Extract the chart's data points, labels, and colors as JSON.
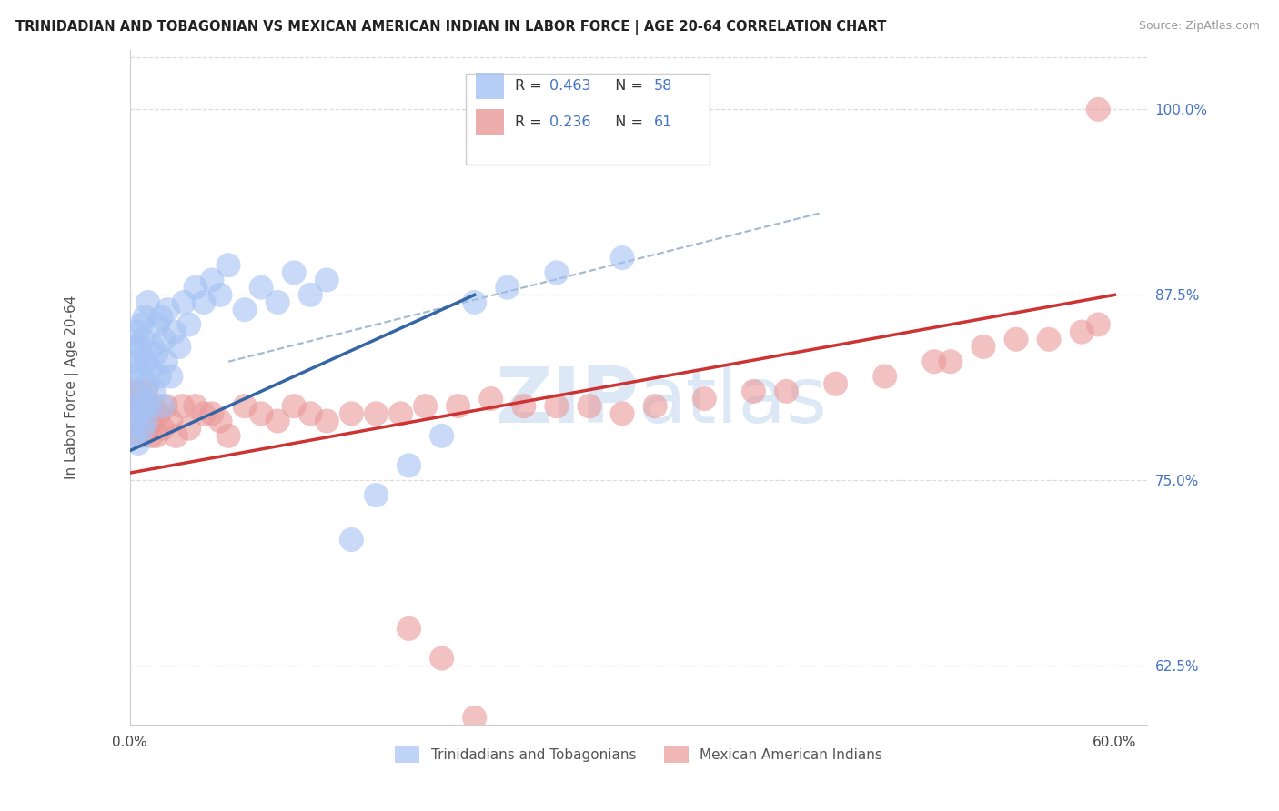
{
  "title": "TRINIDADIAN AND TOBAGONIAN VS MEXICAN AMERICAN INDIAN IN LABOR FORCE | AGE 20-64 CORRELATION CHART",
  "source": "Source: ZipAtlas.com",
  "ylabel": "In Labor Force | Age 20-64",
  "xlim": [
    0.0,
    0.62
  ],
  "ylim": [
    0.585,
    1.04
  ],
  "yticks_right": [
    0.625,
    0.75,
    0.875,
    1.0
  ],
  "yticklabels_right": [
    "62.5%",
    "75.0%",
    "87.5%",
    "100.0%"
  ],
  "R_blue": 0.463,
  "N_blue": 58,
  "R_pink": 0.236,
  "N_pink": 61,
  "blue_color": "#a4c2f4",
  "pink_color": "#ea9999",
  "blue_line_color": "#3465a4",
  "pink_line_color": "#cc3333",
  "dashed_color": "#a0b8d0",
  "legend_labels": [
    "Trinidadians and Tobagonians",
    "Mexican American Indians"
  ],
  "background_color": "#ffffff",
  "grid_color": "#dddddd",
  "right_tick_color": "#4472c4",
  "watermark_color": "#dce8f5",
  "blue_x": [
    0.001,
    0.001,
    0.002,
    0.002,
    0.003,
    0.003,
    0.004,
    0.004,
    0.005,
    0.005,
    0.006,
    0.006,
    0.007,
    0.007,
    0.008,
    0.008,
    0.009,
    0.009,
    0.01,
    0.01,
    0.011,
    0.011,
    0.012,
    0.013,
    0.014,
    0.015,
    0.016,
    0.017,
    0.018,
    0.019,
    0.02,
    0.021,
    0.022,
    0.023,
    0.025,
    0.027,
    0.03,
    0.033,
    0.036,
    0.04,
    0.045,
    0.05,
    0.055,
    0.06,
    0.07,
    0.08,
    0.09,
    0.1,
    0.11,
    0.12,
    0.135,
    0.15,
    0.17,
    0.19,
    0.21,
    0.23,
    0.26,
    0.3
  ],
  "blue_y": [
    0.8,
    0.82,
    0.78,
    0.84,
    0.79,
    0.83,
    0.81,
    0.85,
    0.775,
    0.825,
    0.795,
    0.84,
    0.805,
    0.855,
    0.785,
    0.845,
    0.8,
    0.86,
    0.79,
    0.83,
    0.815,
    0.87,
    0.8,
    0.825,
    0.84,
    0.81,
    0.835,
    0.855,
    0.82,
    0.86,
    0.8,
    0.845,
    0.83,
    0.865,
    0.82,
    0.85,
    0.84,
    0.87,
    0.855,
    0.88,
    0.87,
    0.885,
    0.875,
    0.895,
    0.865,
    0.88,
    0.87,
    0.89,
    0.875,
    0.885,
    0.71,
    0.74,
    0.76,
    0.78,
    0.87,
    0.88,
    0.89,
    0.9
  ],
  "pink_x": [
    0.001,
    0.002,
    0.003,
    0.004,
    0.005,
    0.006,
    0.007,
    0.008,
    0.009,
    0.01,
    0.011,
    0.012,
    0.013,
    0.014,
    0.015,
    0.016,
    0.018,
    0.02,
    0.022,
    0.025,
    0.028,
    0.032,
    0.036,
    0.04,
    0.045,
    0.05,
    0.055,
    0.06,
    0.07,
    0.08,
    0.09,
    0.1,
    0.11,
    0.12,
    0.135,
    0.15,
    0.165,
    0.18,
    0.2,
    0.22,
    0.24,
    0.26,
    0.28,
    0.3,
    0.32,
    0.35,
    0.38,
    0.4,
    0.43,
    0.46,
    0.49,
    0.5,
    0.52,
    0.54,
    0.56,
    0.58,
    0.59,
    0.59,
    0.17,
    0.19,
    0.21
  ],
  "pink_y": [
    0.8,
    0.81,
    0.78,
    0.8,
    0.79,
    0.81,
    0.78,
    0.8,
    0.79,
    0.81,
    0.785,
    0.795,
    0.78,
    0.8,
    0.79,
    0.78,
    0.795,
    0.785,
    0.8,
    0.79,
    0.78,
    0.8,
    0.785,
    0.8,
    0.795,
    0.795,
    0.79,
    0.78,
    0.8,
    0.795,
    0.79,
    0.8,
    0.795,
    0.79,
    0.795,
    0.795,
    0.795,
    0.8,
    0.8,
    0.805,
    0.8,
    0.8,
    0.8,
    0.795,
    0.8,
    0.805,
    0.81,
    0.81,
    0.815,
    0.82,
    0.83,
    0.83,
    0.84,
    0.845,
    0.845,
    0.85,
    0.855,
    1.0,
    0.65,
    0.63,
    0.59
  ],
  "blue_line_x": [
    0.0,
    0.21
  ],
  "blue_line_y": [
    0.77,
    0.875
  ],
  "pink_line_x": [
    0.0,
    0.6
  ],
  "pink_line_y": [
    0.755,
    0.875
  ],
  "dash_line_x": [
    0.06,
    0.42
  ],
  "dash_line_y": [
    0.83,
    0.93
  ]
}
